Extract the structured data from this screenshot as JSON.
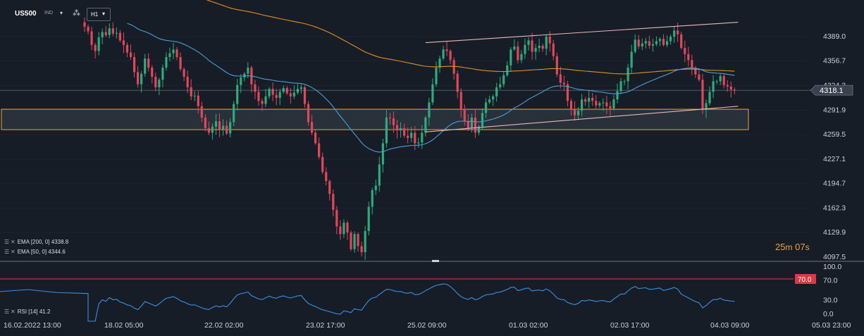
{
  "header": {
    "symbol": "US500",
    "instrument_type": "IND",
    "timeframe": "H1",
    "tools_icon": "line-tools-icon",
    "dropdown_icon": "caret-down-icon"
  },
  "indicators": {
    "ema200_label": "EMA [200, 0]",
    "ema200_value": "4338.8",
    "ema50_label": "EMA [50, 0]",
    "ema50_value": "4344.6",
    "rsi_label": "RSI [14]",
    "rsi_value": "41.2"
  },
  "countdown": {
    "minutes": "25",
    "m": "m",
    "seconds": "07",
    "s": "s"
  },
  "colors": {
    "background": "#161d27",
    "bull": "#2eaa7e",
    "bear": "#e0475b",
    "ema50": "#4a9fd8",
    "ema200": "#e09020",
    "channel": "#e8b8b8",
    "zone_border": "#f0a23a",
    "rsi_line": "#3a8fe0",
    "rsi_level": "#e03a3a"
  },
  "chart_data": [
    {
      "type": "candlestick",
      "symbol": "US500",
      "timeframe": "H1",
      "ylim": [
        4097.5,
        4421.0
      ],
      "y_ticks": [
        "4389.0",
        "4356.7",
        "4324.3",
        "4291.9",
        "4259.5",
        "4227.1",
        "4194.7",
        "4162.3",
        "4129.9",
        "4097.5"
      ],
      "x_ticks": [
        "16.02.2022  13:00",
        "18.02  05:00",
        "22.02  02:00",
        "23.02  17:00",
        "25.02  09:00",
        "01.03  02:00",
        "02.03  17:00",
        "04.03  09:00",
        "05.03  23:00"
      ],
      "current_price": "4318.1",
      "closes": [
        4402,
        4396,
        4378,
        4370,
        4388,
        4395,
        4391,
        4400,
        4393,
        4394,
        4384,
        4378,
        4368,
        4362,
        4342,
        4326,
        4340,
        4360,
        4348,
        4336,
        4322,
        4332,
        4348,
        4362,
        4367,
        4372,
        4362,
        4346,
        4336,
        4322,
        4310,
        4311,
        4297,
        4282,
        4268,
        4262,
        4270,
        4277,
        4266,
        4271,
        4261,
        4276,
        4300,
        4325,
        4335,
        4340,
        4348,
        4326,
        4316,
        4304,
        4300,
        4310,
        4320,
        4312,
        4308,
        4316,
        4321,
        4314,
        4310,
        4315,
        4320,
        4322,
        4300,
        4276,
        4262,
        4248,
        4230,
        4210,
        4198,
        4181,
        4160,
        4138,
        4128,
        4143,
        4130,
        4108,
        4128,
        4112,
        4104,
        4132,
        4164,
        4186,
        4192,
        4220,
        4248,
        4282,
        4281,
        4272,
        4265,
        4268,
        4258,
        4255,
        4262,
        4248,
        4249,
        4262,
        4282,
        4302,
        4326,
        4348,
        4360,
        4372,
        4370,
        4358,
        4340,
        4316,
        4292,
        4277,
        4268,
        4282,
        4262,
        4270,
        4288,
        4302,
        4306,
        4310,
        4322,
        4326,
        4338,
        4351,
        4372,
        4376,
        4358,
        4366,
        4378,
        4384,
        4369,
        4374,
        4377,
        4373,
        4389,
        4380,
        4363,
        4339,
        4328,
        4326,
        4304,
        4293,
        4285,
        4291,
        4306,
        4303,
        4308,
        4304,
        4298,
        4301,
        4302,
        4297,
        4294,
        4306,
        4317,
        4330,
        4330,
        4348,
        4369,
        4385,
        4376,
        4380,
        4383,
        4377,
        4379,
        4383,
        4386,
        4378,
        4383,
        4389,
        4397,
        4392,
        4374,
        4366,
        4358,
        4348,
        4339,
        4332,
        4292,
        4301,
        4316,
        4330,
        4330,
        4337,
        4325,
        4323,
        4319,
        4318
      ],
      "series": [
        {
          "name": "EMA [50, 0]",
          "last": 4344.6
        },
        {
          "name": "EMA [200, 0]",
          "last": 4338.8
        }
      ],
      "annotations": [
        {
          "type": "rising_channel",
          "from": [
            4,
            4381
          ],
          "to": [
            181,
            4408
          ]
        },
        {
          "type": "rising_support",
          "from": [
            4,
            4263
          ],
          "to": [
            181,
            4297
          ]
        },
        {
          "type": "horizontal_zone",
          "from_price": 4266,
          "to_price": 4293
        }
      ]
    },
    {
      "type": "line",
      "title": "RSI [14]",
      "ylim": [
        0,
        100
      ],
      "y_ticks": [
        "100.0",
        "70.0",
        "30.0",
        "0.0"
      ],
      "level": 70.0,
      "level_label": "70.0",
      "last": 41.2
    }
  ]
}
